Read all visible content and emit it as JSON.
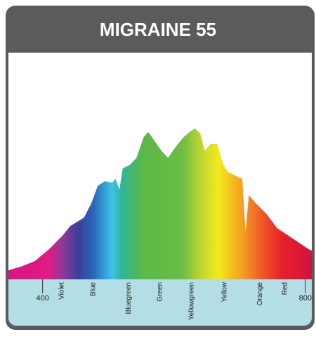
{
  "chart_data": {
    "type": "area",
    "title": "MIGRAINE 55",
    "x": [
      348,
      367,
      388,
      410,
      431,
      442,
      463,
      474,
      484,
      495,
      506,
      511,
      517,
      522,
      533,
      543,
      554,
      561,
      570,
      581,
      591,
      602,
      615,
      624,
      632,
      640,
      647,
      656,
      666,
      675,
      682,
      693,
      704,
      709,
      714,
      725,
      741,
      757,
      773,
      789,
      805,
      812
    ],
    "values": [
      4.0,
      5.6,
      8.0,
      13.3,
      19.5,
      23.5,
      27.2,
      33.4,
      41.2,
      43.3,
      42.7,
      44.3,
      39.6,
      48.9,
      50.5,
      53.6,
      62.8,
      65.0,
      61.3,
      56.7,
      53.6,
      58.2,
      62.8,
      65.0,
      66.6,
      64.4,
      56.7,
      59.8,
      59.8,
      50.5,
      47.4,
      45.8,
      44.3,
      21.1,
      37.2,
      33.4,
      28.8,
      22.6,
      19.5,
      16.4,
      13.3,
      12.4
    ],
    "xlim": [
      348,
      812
    ],
    "xticks": [
      400,
      800
    ],
    "ylim": [
      0,
      100
    ],
    "color_bands": [
      {
        "label": "Violet",
        "x": 429
      },
      {
        "label": "Blue",
        "x": 477
      },
      {
        "label": "Bluegreen",
        "x": 531
      },
      {
        "label": "Green",
        "x": 579
      },
      {
        "label": "Yellowgreen",
        "x": 627
      },
      {
        "label": "Yellow",
        "x": 677
      },
      {
        "label": "Orange",
        "x": 731
      },
      {
        "label": "Red",
        "x": 769
      }
    ]
  }
}
